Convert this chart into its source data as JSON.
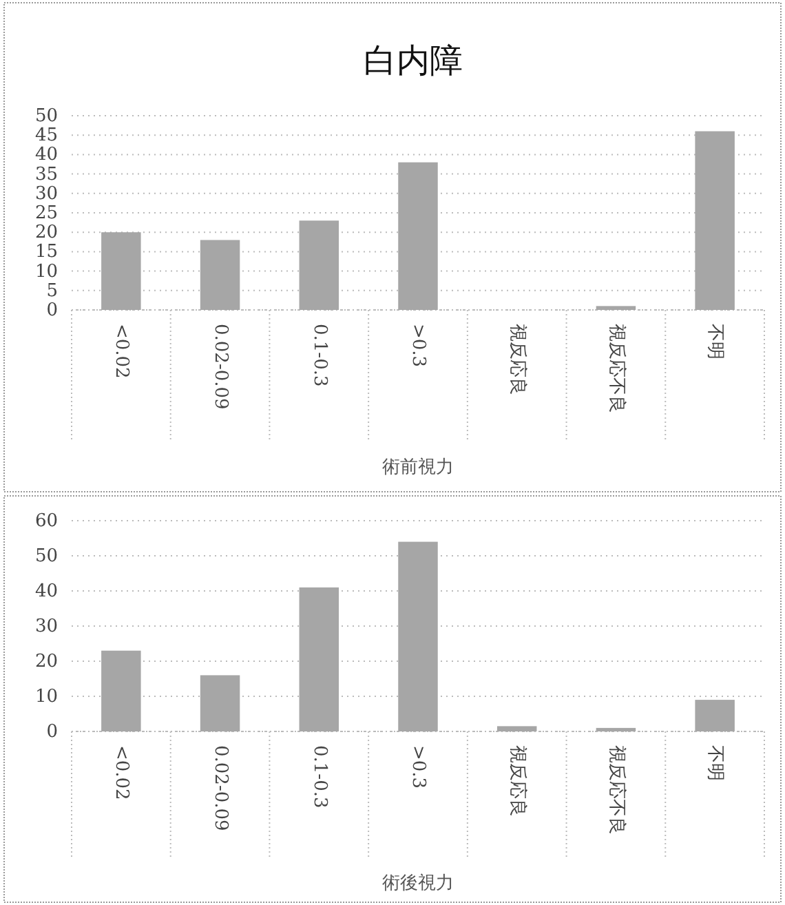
{
  "chart_data": [
    {
      "type": "bar",
      "title": "白内障",
      "xlabel": "術前視力",
      "categories": [
        "<0.02",
        "0.02-0.09",
        "0.1-0.3",
        ">0.3",
        "視反応良",
        "視反応不良",
        "不明"
      ],
      "values": [
        20,
        18,
        23,
        38,
        0,
        1,
        46
      ],
      "color": "#a6a6a6",
      "ylim": [
        0,
        50
      ],
      "yticks": [
        0,
        5,
        10,
        15,
        20,
        25,
        30,
        35,
        40,
        45,
        50
      ],
      "grid": "y"
    },
    {
      "type": "bar",
      "xlabel": "術後視力",
      "categories": [
        "<0.02",
        "0.02-0.09",
        "0.1-0.3",
        ">0.3",
        "視反応良",
        "視反応不良",
        "不明"
      ],
      "values": [
        23,
        16,
        41,
        54,
        1.5,
        1,
        9
      ],
      "color": "#a6a6a6",
      "ylim": [
        0,
        60
      ],
      "yticks": [
        0,
        10,
        20,
        30,
        40,
        50,
        60
      ],
      "grid": "y"
    }
  ]
}
